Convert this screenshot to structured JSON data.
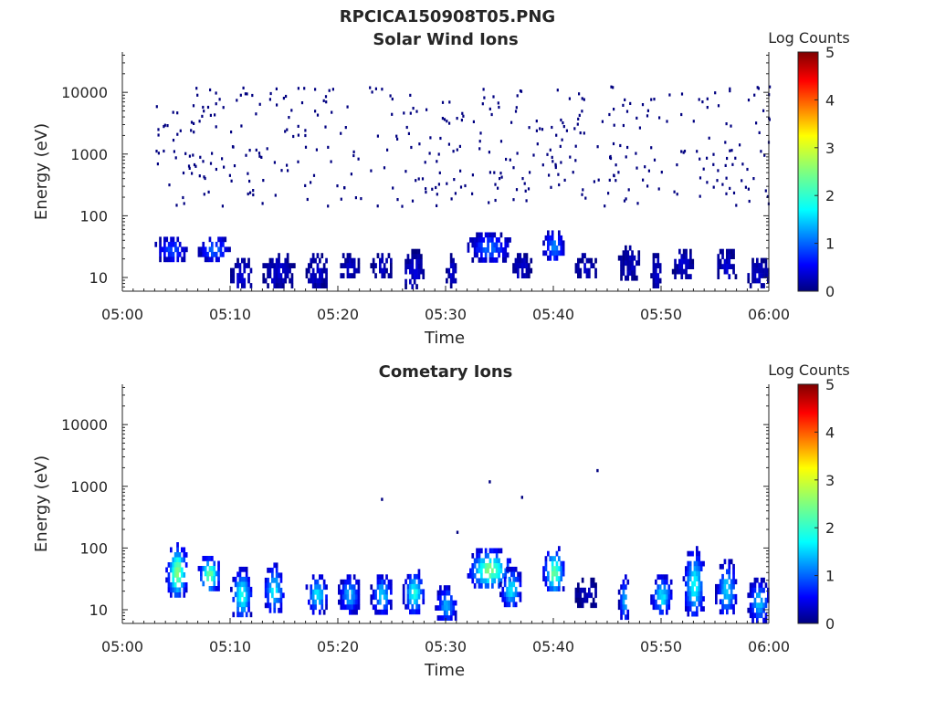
{
  "figure": {
    "filename": "RPCICA150908T05.PNG"
  },
  "chart_data": [
    {
      "type": "heatmap",
      "title": "Solar Wind Ions",
      "xlabel": "Time",
      "ylabel": "Energy (eV)",
      "x_tick_labels": [
        "05:00",
        "05:10",
        "05:20",
        "05:30",
        "05:40",
        "05:50",
        "06:00"
      ],
      "xlim": [
        "05:00",
        "06:00"
      ],
      "y_scale": "log",
      "y_tick_labels": [
        "10",
        "100",
        "1000",
        "10000"
      ],
      "ylim": [
        6,
        45000
      ],
      "colorbar": {
        "label": "Log Counts",
        "ticks": [
          "0",
          "1",
          "2",
          "3",
          "4",
          "5"
        ],
        "range": [
          0,
          5
        ],
        "colormap": "jet"
      },
      "bursts": [
        {
          "start": "05:03",
          "end": "05:06",
          "low_eV": 20,
          "high_eV": 55,
          "peak_log_counts": 1.0
        },
        {
          "start": "05:07",
          "end": "05:10",
          "low_eV": 20,
          "high_eV": 55,
          "peak_log_counts": 1.1
        },
        {
          "start": "05:10",
          "end": "05:12",
          "low_eV": 7,
          "high_eV": 25,
          "peak_log_counts": 0.5
        },
        {
          "start": "05:13",
          "end": "05:16",
          "low_eV": 7,
          "high_eV": 30,
          "peak_log_counts": 0.4
        },
        {
          "start": "05:17",
          "end": "05:19",
          "low_eV": 7,
          "high_eV": 30,
          "peak_log_counts": 0.4
        },
        {
          "start": "05:20",
          "end": "05:22",
          "low_eV": 10,
          "high_eV": 30,
          "peak_log_counts": 0.3
        },
        {
          "start": "05:23",
          "end": "05:25",
          "low_eV": 10,
          "high_eV": 30,
          "peak_log_counts": 0.3
        },
        {
          "start": "05:26",
          "end": "05:28",
          "low_eV": 7,
          "high_eV": 35,
          "peak_log_counts": 0.4
        },
        {
          "start": "05:30",
          "end": "05:31",
          "low_eV": 7,
          "high_eV": 30,
          "peak_log_counts": 0.4
        },
        {
          "start": "05:32",
          "end": "05:36",
          "low_eV": 20,
          "high_eV": 65,
          "peak_log_counts": 1.1
        },
        {
          "start": "05:36",
          "end": "05:38",
          "low_eV": 10,
          "high_eV": 30,
          "peak_log_counts": 0.4
        },
        {
          "start": "05:39",
          "end": "05:41",
          "low_eV": 20,
          "high_eV": 70,
          "peak_log_counts": 1.3
        },
        {
          "start": "05:42",
          "end": "05:44",
          "low_eV": 10,
          "high_eV": 30,
          "peak_log_counts": 0.3
        },
        {
          "start": "05:46",
          "end": "05:48",
          "low_eV": 10,
          "high_eV": 40,
          "peak_log_counts": 0.3
        },
        {
          "start": "05:49",
          "end": "05:50",
          "low_eV": 7,
          "high_eV": 30,
          "peak_log_counts": 0.4
        },
        {
          "start": "05:51",
          "end": "05:53",
          "low_eV": 10,
          "high_eV": 35,
          "peak_log_counts": 0.4
        },
        {
          "start": "05:55",
          "end": "05:57",
          "low_eV": 10,
          "high_eV": 35,
          "peak_log_counts": 0.4
        },
        {
          "start": "05:58",
          "end": "06:00",
          "low_eV": 7,
          "high_eV": 25,
          "peak_log_counts": 0.4
        }
      ],
      "scatter_range": {
        "start": "05:03",
        "end": "06:00",
        "low_eV": 150,
        "high_eV": 13000,
        "log_counts": 0
      }
    },
    {
      "type": "heatmap",
      "title": "Cometary Ions",
      "xlabel": "Time",
      "ylabel": "Energy (eV)",
      "x_tick_labels": [
        "05:00",
        "05:10",
        "05:20",
        "05:30",
        "05:40",
        "05:50",
        "06:00"
      ],
      "xlim": [
        "05:00",
        "06:00"
      ],
      "y_scale": "log",
      "y_tick_labels": [
        "10",
        "100",
        "1000",
        "10000"
      ],
      "ylim": [
        6,
        45000
      ],
      "colorbar": {
        "label": "Log Counts",
        "ticks": [
          "0",
          "1",
          "2",
          "3",
          "4",
          "5"
        ],
        "range": [
          0,
          5
        ],
        "colormap": "jet"
      },
      "bursts": [
        {
          "start": "05:04",
          "end": "05:06",
          "low_eV": 18,
          "high_eV": 150,
          "peak_log_counts": 2.6
        },
        {
          "start": "05:07",
          "end": "05:09",
          "low_eV": 22,
          "high_eV": 90,
          "peak_log_counts": 2.5
        },
        {
          "start": "05:10",
          "end": "05:12",
          "low_eV": 8,
          "high_eV": 60,
          "peak_log_counts": 2.0
        },
        {
          "start": "05:13",
          "end": "05:15",
          "low_eV": 10,
          "high_eV": 70,
          "peak_log_counts": 1.8
        },
        {
          "start": "05:17",
          "end": "05:19",
          "low_eV": 10,
          "high_eV": 45,
          "peak_log_counts": 1.8
        },
        {
          "start": "05:20",
          "end": "05:22",
          "low_eV": 10,
          "high_eV": 45,
          "peak_log_counts": 1.5
        },
        {
          "start": "05:23",
          "end": "05:25",
          "low_eV": 10,
          "high_eV": 45,
          "peak_log_counts": 1.7
        },
        {
          "start": "05:26",
          "end": "05:28",
          "low_eV": 10,
          "high_eV": 55,
          "peak_log_counts": 2.0
        },
        {
          "start": "05:29",
          "end": "05:31",
          "low_eV": 7,
          "high_eV": 30,
          "peak_log_counts": 1.5
        },
        {
          "start": "05:32",
          "end": "05:36",
          "low_eV": 25,
          "high_eV": 120,
          "peak_log_counts": 2.5
        },
        {
          "start": "05:35",
          "end": "05:37",
          "low_eV": 12,
          "high_eV": 60,
          "peak_log_counts": 1.8
        },
        {
          "start": "05:39",
          "end": "05:41",
          "low_eV": 20,
          "high_eV": 130,
          "peak_log_counts": 2.4
        },
        {
          "start": "05:42",
          "end": "05:44",
          "low_eV": 12,
          "high_eV": 40,
          "peak_log_counts": 0.3
        },
        {
          "start": "05:46",
          "end": "05:47",
          "low_eV": 7,
          "high_eV": 45,
          "peak_log_counts": 1.5
        },
        {
          "start": "05:49",
          "end": "05:51",
          "low_eV": 9,
          "high_eV": 45,
          "peak_log_counts": 1.8
        },
        {
          "start": "05:52",
          "end": "05:54",
          "low_eV": 9,
          "high_eV": 130,
          "peak_log_counts": 2.0
        },
        {
          "start": "05:55",
          "end": "05:57",
          "low_eV": 9,
          "high_eV": 80,
          "peak_log_counts": 1.7
        },
        {
          "start": "05:58",
          "end": "06:00",
          "low_eV": 7,
          "high_eV": 40,
          "peak_log_counts": 1.6
        }
      ],
      "isolated_points": [
        {
          "time": "05:24",
          "energy_eV": 650,
          "log_counts": 0
        },
        {
          "time": "05:31",
          "energy_eV": 190,
          "log_counts": 0
        },
        {
          "time": "05:34",
          "energy_eV": 1250,
          "log_counts": 0
        },
        {
          "time": "05:37",
          "energy_eV": 700,
          "log_counts": 0
        },
        {
          "time": "05:44",
          "energy_eV": 1900,
          "log_counts": 0
        }
      ]
    }
  ]
}
